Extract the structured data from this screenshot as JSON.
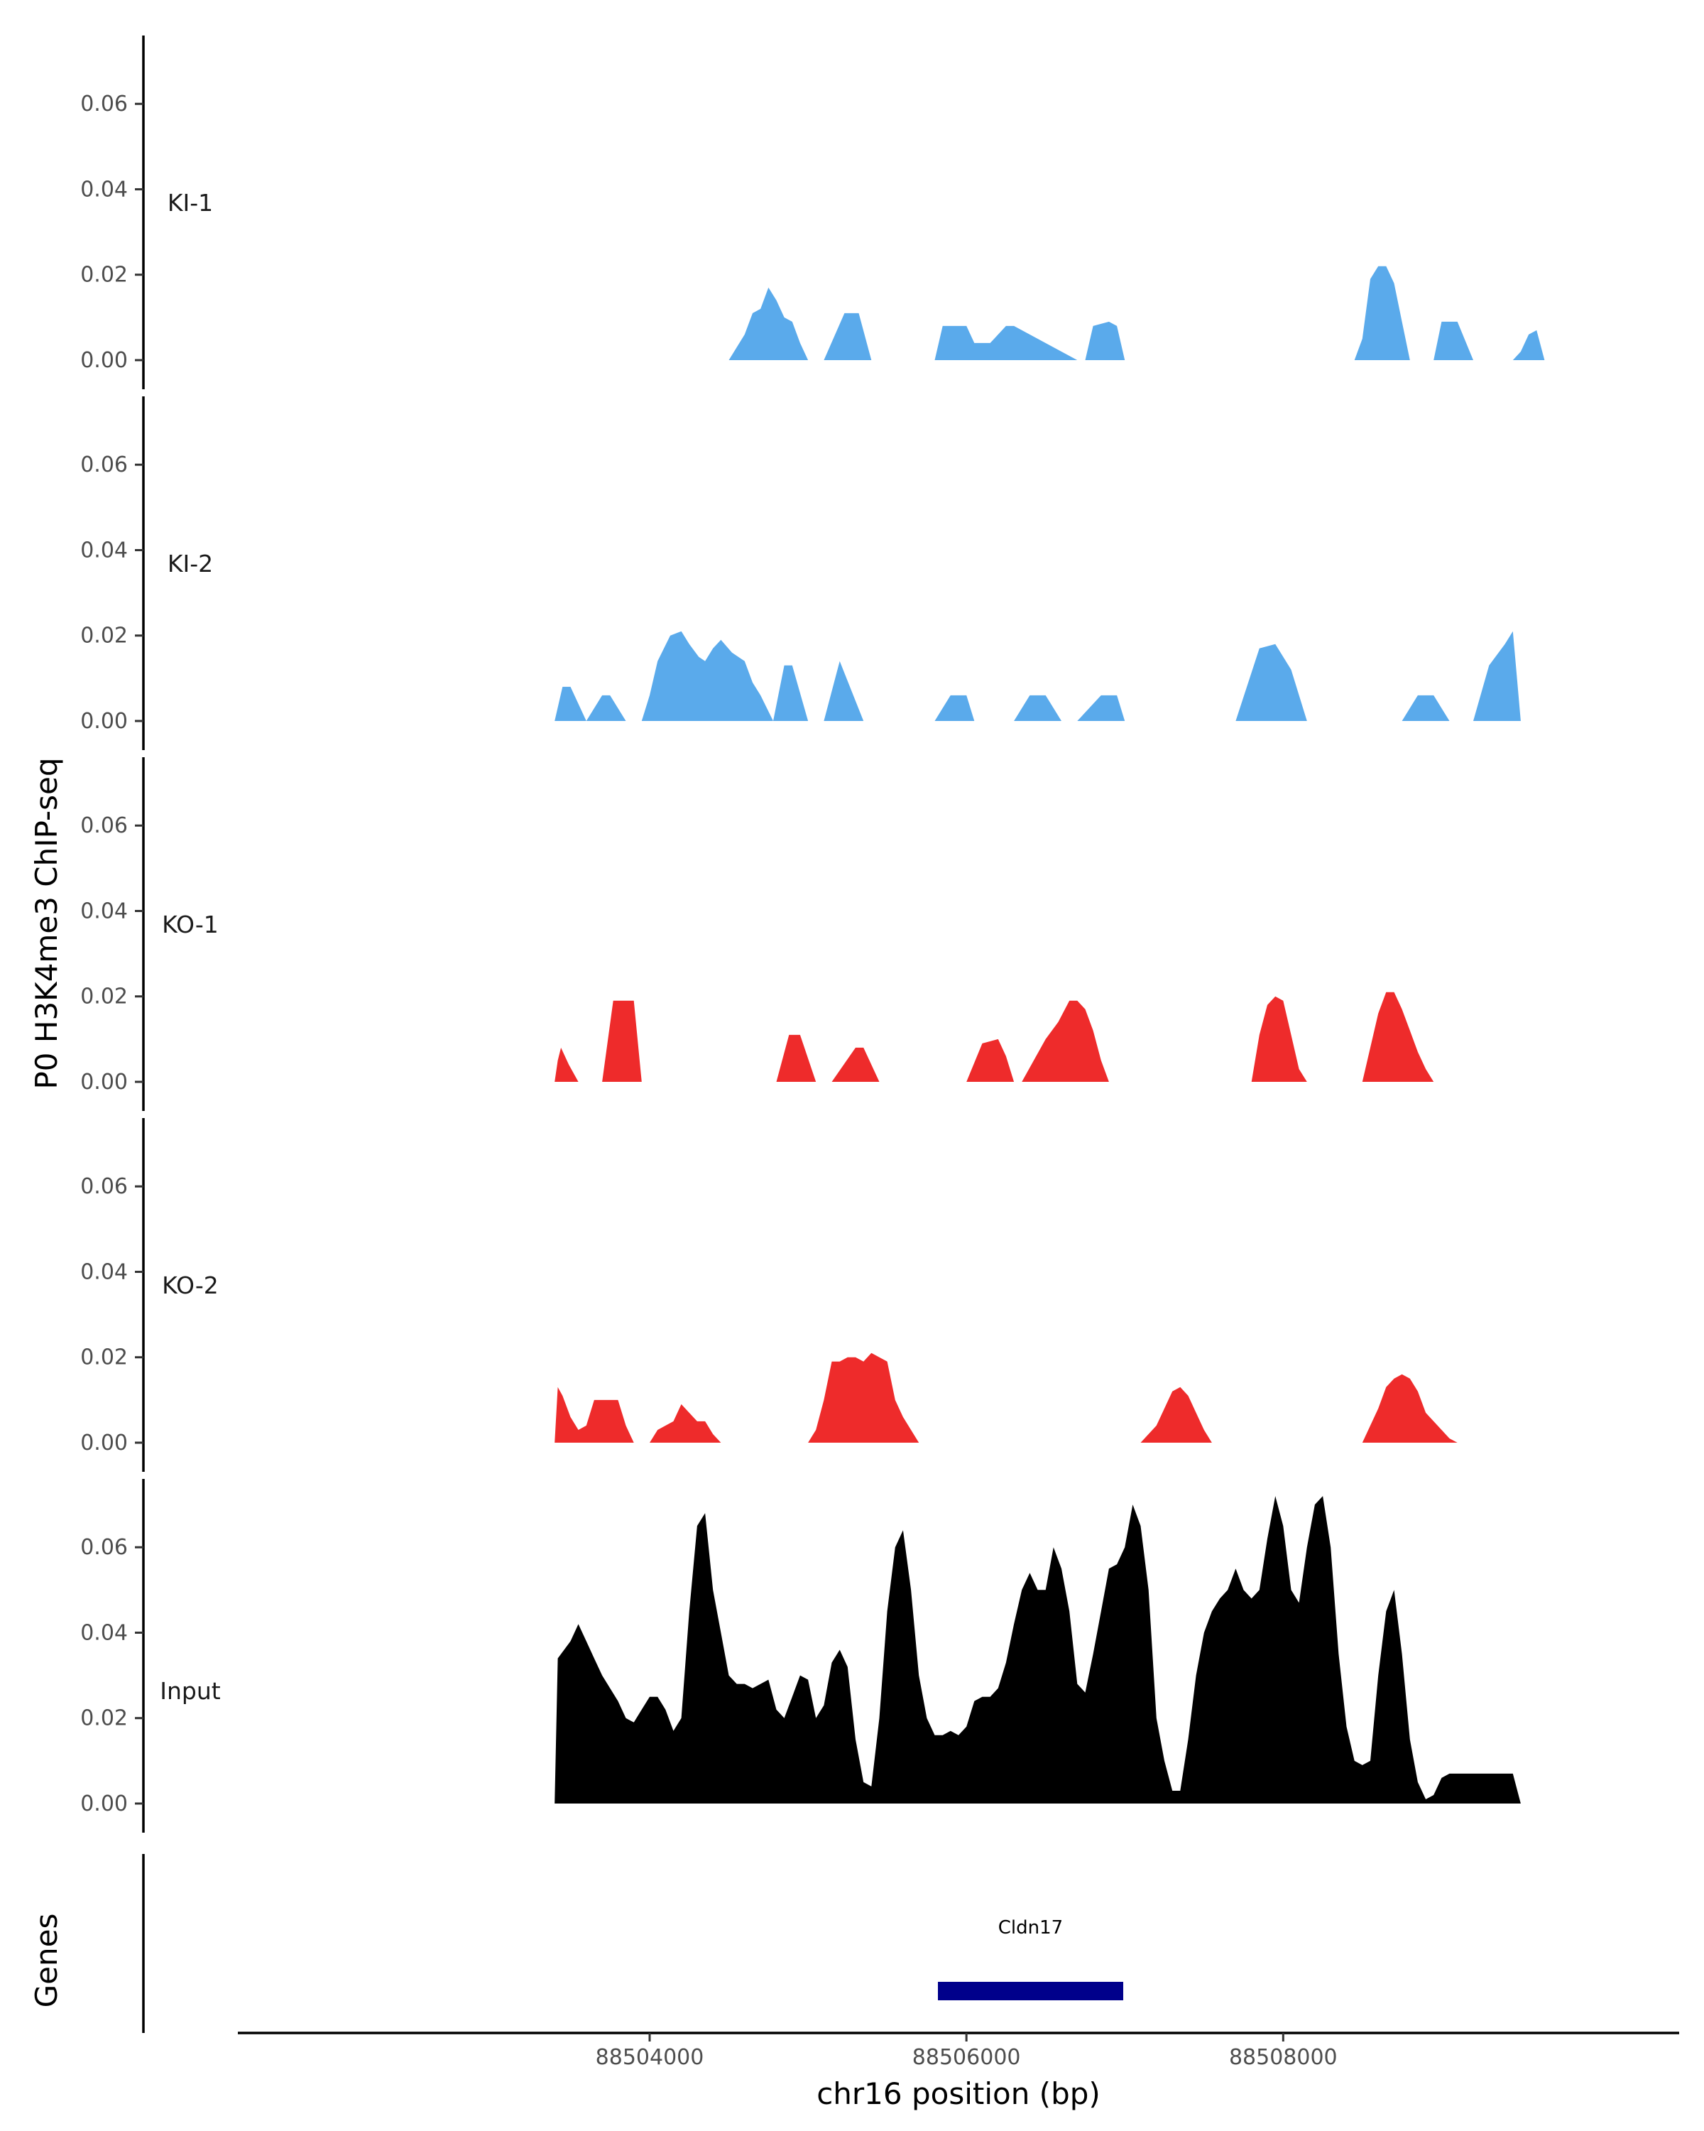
{
  "chart_data": {
    "type": "area",
    "ylabel": "P0 H3K4me3 ChIP-seq",
    "xlabel": "chr16 position (bp)",
    "genes_label": "Genes",
    "xlim": [
      88501400,
      88510500
    ],
    "ylim": [
      0,
      0.076
    ],
    "y_ticks": [
      "0.00",
      "0.02",
      "0.04",
      "0.06"
    ],
    "y_tick_values": [
      0,
      0.02,
      0.04,
      0.06
    ],
    "x_ticks": [
      "88504000",
      "88506000",
      "88508000"
    ],
    "x_tick_values": [
      88504000,
      88506000,
      88508000
    ],
    "colors": {
      "KI": "#5aaaeb",
      "KO": "#ee2b2b",
      "Input": "#000000",
      "gene": "#00008b"
    },
    "tracks": [
      {
        "name": "KI-1",
        "color": "#5aaaeb",
        "x": [
          88503400,
          88504500,
          88504600,
          88504650,
          88504700,
          88504750,
          88504800,
          88504850,
          88504900,
          88504950,
          88505000,
          88505100,
          88505230,
          88505320,
          88505400,
          88505500,
          88505800,
          88505850,
          88506000,
          88506050,
          88506150,
          88506250,
          88506300,
          88506700,
          88506750,
          88506800,
          88506900,
          88506950,
          88507000,
          88508450,
          88508500,
          88508550,
          88508600,
          88508650,
          88508700,
          88508750,
          88508800,
          88508850,
          88508900,
          88508950,
          88509000,
          88509100,
          88509200,
          88509270,
          88509400,
          88509450,
          88509500,
          88509550,
          88509600,
          88509650
        ],
        "y": [
          0,
          0,
          0.006,
          0.011,
          0.012,
          0.017,
          0.014,
          0.01,
          0.009,
          0.004,
          0,
          0,
          0.011,
          0.011,
          0,
          0,
          0,
          0.008,
          0.008,
          0.004,
          0.004,
          0.008,
          0.008,
          0,
          0,
          0.008,
          0.009,
          0.008,
          0,
          0,
          0.005,
          0.019,
          0.022,
          0.022,
          0.018,
          0.009,
          0,
          0,
          0,
          0,
          0.009,
          0.009,
          0,
          0,
          0,
          0,
          0.002,
          0.006,
          0.007,
          0
        ]
      },
      {
        "name": "KI-2",
        "color": "#5aaaeb",
        "x": [
          88503400,
          88503450,
          88503500,
          88503600,
          88503700,
          88503750,
          88503850,
          88503950,
          88504000,
          88504050,
          88504130,
          88504200,
          88504250,
          88504310,
          88504350,
          88504400,
          88504450,
          88504520,
          88504600,
          88504650,
          88504700,
          88504780,
          88504850,
          88504900,
          88505000,
          88505100,
          88505200,
          88505350,
          88505800,
          88505900,
          88506000,
          88506050,
          88506100,
          88506300,
          88506400,
          88506500,
          88506600,
          88506700,
          88506850,
          88506950,
          88507000,
          88507100,
          88507700,
          88507850,
          88507950,
          88508050,
          88508150,
          88508650,
          88508750,
          88508850,
          88508950,
          88509050,
          88509100,
          88509200,
          88509300,
          88509400,
          88509450,
          88509500
        ],
        "y": [
          0,
          0.008,
          0.008,
          0,
          0.006,
          0.006,
          0,
          0,
          0.006,
          0.014,
          0.02,
          0.021,
          0.018,
          0.015,
          0.014,
          0.017,
          0.019,
          0.016,
          0.014,
          0.009,
          0.006,
          0,
          0.013,
          0.013,
          0,
          0,
          0.014,
          0,
          0,
          0.006,
          0.006,
          0,
          0,
          0,
          0.006,
          0.006,
          0,
          0,
          0.006,
          0.006,
          0,
          0,
          0,
          0.017,
          0.018,
          0.012,
          0,
          0,
          0,
          0.006,
          0.006,
          0,
          0,
          0,
          0.013,
          0.018,
          0.021,
          0
        ]
      },
      {
        "name": "KO-1",
        "color": "#ee2b2b",
        "x": [
          88503400,
          88503420,
          88503440,
          88503490,
          88503550,
          88503700,
          88503770,
          88503800,
          88503900,
          88503950,
          88504000,
          88504800,
          88504880,
          88504950,
          88505050,
          88505100,
          88505150,
          88505300,
          88505350,
          88505450,
          88505500,
          88506000,
          88506100,
          88506200,
          88506250,
          88506300,
          88506350,
          88506500,
          88506580,
          88506650,
          88506700,
          88506750,
          88506800,
          88506850,
          88506900,
          88506950,
          88507800,
          88507850,
          88507900,
          88507950,
          88508000,
          88508050,
          88508100,
          88508150,
          88508500,
          88508550,
          88508600,
          88508650,
          88508700,
          88508750,
          88508800,
          88508850,
          88508900,
          88508950,
          88509000,
          88509050,
          88509100
        ],
        "y": [
          0,
          0.005,
          0.008,
          0.004,
          0,
          0,
          0.019,
          0.019,
          0.019,
          0,
          0,
          0,
          0.011,
          0.011,
          0,
          0,
          0,
          0.008,
          0.008,
          0,
          0,
          0,
          0.009,
          0.01,
          0.006,
          0,
          0,
          0.01,
          0.014,
          0.019,
          0.019,
          0.017,
          0.012,
          0.005,
          0,
          0,
          0,
          0.011,
          0.018,
          0.02,
          0.019,
          0.011,
          0.003,
          0,
          0,
          0.008,
          0.016,
          0.021,
          0.021,
          0.017,
          0.012,
          0.007,
          0.003,
          0,
          0,
          0,
          0
        ]
      },
      {
        "name": "KO-2",
        "color": "#ee2b2b",
        "x": [
          88503400,
          88503420,
          88503450,
          88503500,
          88503550,
          88503600,
          88503650,
          88503700,
          88503800,
          88503850,
          88503900,
          88504000,
          88504050,
          88504150,
          88504200,
          88504300,
          88504350,
          88504400,
          88504450,
          88505000,
          88505050,
          88505100,
          88505150,
          88505200,
          88505250,
          88505300,
          88505350,
          88505400,
          88505450,
          88505500,
          88505550,
          88505600,
          88505700,
          88505800,
          88507100,
          88507200,
          88507300,
          88507350,
          88507400,
          88507450,
          88507500,
          88507550,
          88507600,
          88508500,
          88508600,
          88508650,
          88508700,
          88508750,
          88508800,
          88508850,
          88508900,
          88508950,
          88509000,
          88509050,
          88509100,
          88509150
        ],
        "y": [
          0,
          0.013,
          0.011,
          0.006,
          0.003,
          0.004,
          0.01,
          0.01,
          0.01,
          0.004,
          0,
          0,
          0.003,
          0.005,
          0.009,
          0.005,
          0.005,
          0.002,
          0,
          0,
          0.003,
          0.01,
          0.019,
          0.019,
          0.02,
          0.02,
          0.019,
          0.021,
          0.02,
          0.019,
          0.01,
          0.006,
          0,
          0,
          0,
          0.004,
          0.012,
          0.013,
          0.011,
          0.007,
          0.003,
          0,
          0,
          0,
          0.008,
          0.013,
          0.015,
          0.016,
          0.015,
          0.012,
          0.007,
          0.005,
          0.003,
          0.001,
          0,
          0
        ]
      },
      {
        "name": "Input",
        "color": "#000000",
        "x": [
          88503400,
          88503420,
          88503500,
          88503550,
          88503600,
          88503650,
          88503700,
          88503750,
          88503800,
          88503850,
          88503900,
          88503950,
          88504000,
          88504050,
          88504100,
          88504150,
          88504200,
          88504250,
          88504300,
          88504350,
          88504400,
          88504450,
          88504500,
          88504550,
          88504600,
          88504650,
          88504700,
          88504750,
          88504800,
          88504850,
          88504900,
          88504950,
          88505000,
          88505050,
          88505100,
          88505150,
          88505200,
          88505250,
          88505300,
          88505350,
          88505400,
          88505450,
          88505500,
          88505550,
          88505600,
          88505650,
          88505700,
          88505750,
          88505800,
          88505850,
          88505900,
          88505950,
          88506000,
          88506050,
          88506100,
          88506150,
          88506200,
          88506250,
          88506300,
          88506350,
          88506400,
          88506450,
          88506500,
          88506550,
          88506600,
          88506650,
          88506700,
          88506750,
          88506800,
          88506850,
          88506900,
          88506950,
          88507000,
          88507050,
          88507100,
          88507150,
          88507200,
          88507250,
          88507300,
          88507350,
          88507400,
          88507450,
          88507500,
          88507550,
          88507600,
          88507650,
          88507700,
          88507750,
          88507800,
          88507850,
          88507900,
          88507950,
          88508000,
          88508050,
          88508100,
          88508150,
          88508200,
          88508250,
          88508300,
          88508350,
          88508400,
          88508450,
          88508500,
          88508550,
          88508600,
          88508650,
          88508700,
          88508750,
          88508800,
          88508850,
          88508900,
          88508950,
          88509000,
          88509050,
          88509100,
          88509150,
          88509200,
          88509250,
          88509300,
          88509350,
          88509400,
          88509450,
          88509500
        ],
        "y": [
          0,
          0.034,
          0.038,
          0.042,
          0.038,
          0.034,
          0.03,
          0.027,
          0.024,
          0.02,
          0.019,
          0.022,
          0.025,
          0.025,
          0.022,
          0.017,
          0.02,
          0.045,
          0.065,
          0.068,
          0.05,
          0.04,
          0.03,
          0.028,
          0.028,
          0.027,
          0.028,
          0.029,
          0.022,
          0.02,
          0.025,
          0.03,
          0.029,
          0.02,
          0.023,
          0.033,
          0.036,
          0.032,
          0.015,
          0.005,
          0.004,
          0.02,
          0.045,
          0.06,
          0.064,
          0.05,
          0.03,
          0.02,
          0.016,
          0.016,
          0.017,
          0.016,
          0.018,
          0.024,
          0.025,
          0.025,
          0.027,
          0.033,
          0.042,
          0.05,
          0.054,
          0.05,
          0.05,
          0.06,
          0.055,
          0.045,
          0.028,
          0.026,
          0.035,
          0.045,
          0.055,
          0.056,
          0.06,
          0.07,
          0.065,
          0.05,
          0.02,
          0.01,
          0.003,
          0.003,
          0.015,
          0.03,
          0.04,
          0.045,
          0.048,
          0.05,
          0.055,
          0.05,
          0.048,
          0.05,
          0.062,
          0.072,
          0.065,
          0.05,
          0.047,
          0.06,
          0.07,
          0.072,
          0.06,
          0.035,
          0.018,
          0.01,
          0.009,
          0.01,
          0.03,
          0.045,
          0.05,
          0.035,
          0.015,
          0.005,
          0.001,
          0.002,
          0.006,
          0.007,
          0.007,
          0.007,
          0.007,
          0.007,
          0.007,
          0.007,
          0.007,
          0.007,
          0
        ]
      }
    ],
    "gene": {
      "name": "Cldn17",
      "start": 88505820,
      "end": 88506990
    }
  }
}
